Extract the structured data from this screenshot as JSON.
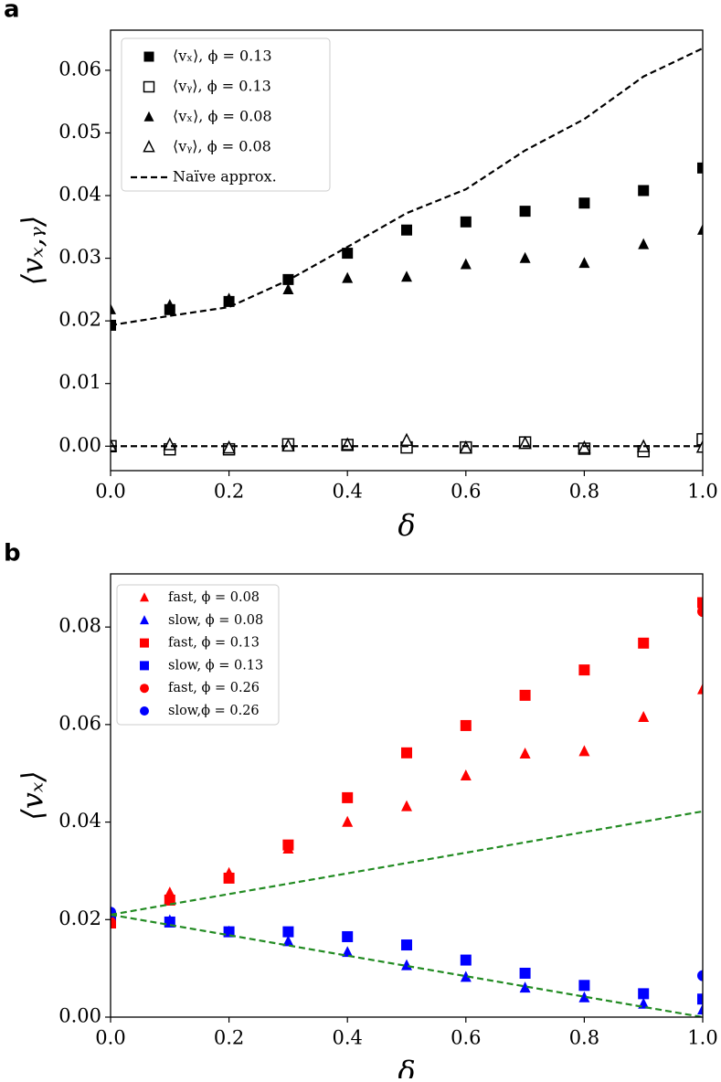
{
  "chart_data": [
    {
      "type": "scatter",
      "panel_label": "a",
      "xlabel": "δ",
      "ylabel": "⟨vₓ,ᵧ⟩",
      "x": [
        0.0,
        0.1,
        0.2,
        0.3,
        0.4,
        0.5,
        0.6,
        0.7,
        0.8,
        0.9,
        1.0
      ],
      "xlim": [
        0,
        1
      ],
      "ylim": [
        -0.0039,
        0.0664
      ],
      "legend": "upper left",
      "xticks": [
        {
          "value": 0,
          "label": "0.0"
        },
        {
          "value": 0.2,
          "label": "0.2"
        },
        {
          "value": 0.4,
          "label": "0.4"
        },
        {
          "value": 0.6,
          "label": "0.6"
        },
        {
          "value": 0.8,
          "label": "0.8"
        },
        {
          "value": 1,
          "label": "1.0"
        }
      ],
      "yticks": [
        {
          "value": 0,
          "label": "0.00"
        },
        {
          "value": 0.01,
          "label": "0.01"
        },
        {
          "value": 0.02,
          "label": "0.02"
        },
        {
          "value": 0.03,
          "label": "0.03"
        },
        {
          "value": 0.04,
          "label": "0.04"
        },
        {
          "value": 0.05,
          "label": "0.05"
        },
        {
          "value": 0.06,
          "label": "0.06"
        }
      ],
      "series": [
        {
          "name": "⟨vₓ⟩, ϕ = 0.13",
          "color": "#000000",
          "marker": "square",
          "filled": true,
          "values": [
            0.0193,
            0.0218,
            0.0231,
            0.0266,
            0.0308,
            0.0345,
            0.0358,
            0.0375,
            0.0388,
            0.0408,
            0.0444
          ]
        },
        {
          "name": "⟨vᵧ⟩, ϕ = 0.13",
          "color": "#000000",
          "marker": "square",
          "filled": false,
          "values": [
            0.0,
            -0.0005,
            -0.0005,
            0.0003,
            0.0002,
            -0.0002,
            -0.0002,
            0.0006,
            -0.0004,
            -0.0008,
            0.0011
          ]
        },
        {
          "name": "⟨vₓ⟩, ϕ = 0.08",
          "color": "#000000",
          "marker": "triangle",
          "filled": true,
          "values": [
            0.0218,
            0.0225,
            0.0235,
            0.025,
            0.0268,
            0.027,
            0.029,
            0.03,
            0.0292,
            0.0322,
            0.0345
          ]
        },
        {
          "name": "⟨vᵧ⟩, ϕ = 0.08",
          "color": "#000000",
          "marker": "triangle",
          "filled": false,
          "values": [
            0.0,
            0.0002,
            -0.0003,
            0.0,
            0.0002,
            0.0009,
            -0.0003,
            0.0004,
            -0.0003,
            -0.0001,
            -0.0002
          ]
        },
        {
          "name": "Naïve approx.",
          "color": "#000000",
          "linestyle": "dashed",
          "values": [
            0.0193,
            0.0208,
            0.0222,
            0.0265,
            0.0318,
            0.0372,
            0.041,
            0.0472,
            0.0522,
            0.059,
            0.0635
          ]
        },
        {
          "color": "#000000",
          "linestyle": "dashed",
          "values": [
            0,
            0,
            0,
            0,
            0,
            0,
            0,
            0,
            0,
            0,
            0
          ]
        }
      ]
    },
    {
      "type": "scatter",
      "panel_label": "b",
      "xlabel": "δ",
      "ylabel": "⟨vₓ⟩",
      "x": [
        0.0,
        0.1,
        0.2,
        0.3,
        0.4,
        0.5,
        0.6,
        0.7,
        0.8,
        0.9,
        1.0
      ],
      "xlim": [
        0,
        1
      ],
      "ylim": [
        0,
        0.0909
      ],
      "legend": "upper left",
      "xticks": [
        {
          "value": 0,
          "label": "0.0"
        },
        {
          "value": 0.2,
          "label": "0.2"
        },
        {
          "value": 0.4,
          "label": "0.4"
        },
        {
          "value": 0.6,
          "label": "0.6"
        },
        {
          "value": 0.8,
          "label": "0.8"
        },
        {
          "value": 1,
          "label": "1.0"
        }
      ],
      "yticks": [
        {
          "value": 0,
          "label": "0.00"
        },
        {
          "value": 0.02,
          "label": "0.02"
        },
        {
          "value": 0.04,
          "label": "0.04"
        },
        {
          "value": 0.06,
          "label": "0.06"
        },
        {
          "value": 0.08,
          "label": "0.08"
        }
      ],
      "series": [
        {
          "name": "fast, ϕ = 0.08",
          "color": "#ff0000",
          "marker": "triangle",
          "filled": true,
          "values": [
            0.0195,
            0.0255,
            0.0295,
            0.0345,
            0.04,
            0.0432,
            0.0495,
            0.054,
            0.0545,
            0.0615,
            0.0672
          ]
        },
        {
          "name": "slow, ϕ = 0.08",
          "color": "#0000ff",
          "marker": "triangle",
          "filled": true,
          "values": [
            0.0215,
            0.0198,
            0.0175,
            0.0155,
            0.0133,
            0.0106,
            0.0082,
            0.006,
            0.004,
            0.0027,
            0.0015
          ]
        },
        {
          "name": "fast, ϕ = 0.13",
          "color": "#ff0000",
          "marker": "square",
          "filled": true,
          "values": [
            0.0193,
            0.024,
            0.0285,
            0.0353,
            0.045,
            0.0542,
            0.0598,
            0.066,
            0.0712,
            0.0767,
            0.085
          ]
        },
        {
          "name": "slow, ϕ = 0.13",
          "color": "#0000ff",
          "marker": "square",
          "filled": true,
          "values": [
            0.0205,
            0.0195,
            0.0175,
            0.0175,
            0.0165,
            0.0148,
            0.0117,
            0.009,
            0.0065,
            0.0048,
            0.0037
          ]
        },
        {
          "name": "fast, ϕ = 0.26",
          "color": "#ff0000",
          "marker": "circle",
          "filled": true,
          "values": [
            0.0195,
            null,
            null,
            null,
            null,
            null,
            null,
            null,
            null,
            null,
            0.0832
          ]
        },
        {
          "name": "slow,ϕ = 0.26",
          "color": "#0000ff",
          "marker": "circle",
          "filled": true,
          "values": [
            0.0215,
            null,
            null,
            null,
            null,
            null,
            null,
            null,
            null,
            null,
            0.0085
          ]
        },
        {
          "color": "#228b22",
          "linestyle": "dashed",
          "x": [
            0,
            1
          ],
          "values": [
            0.021,
            0.0422
          ]
        },
        {
          "color": "#228b22",
          "linestyle": "dashed",
          "x": [
            0,
            1
          ],
          "values": [
            0.021,
            0.0
          ]
        }
      ]
    }
  ]
}
